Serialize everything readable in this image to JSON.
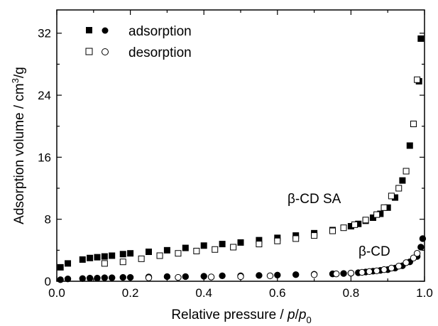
{
  "chart_data": {
    "type": "scatter",
    "xlabel_main": "Relative pressure / ",
    "xlabel_p": "p",
    "xlabel_slash": "/",
    "xlabel_p0": "p",
    "xlabel_sub": "0",
    "ylabel_main": "Adsorption volume / cm",
    "ylabel_sup": "3",
    "ylabel_tail": "/g",
    "xlim": [
      0.0,
      1.0
    ],
    "ylim": [
      0,
      35
    ],
    "x_ticks": [
      0.0,
      0.2,
      0.4,
      0.6,
      0.8,
      1.0
    ],
    "x_tick_labels": [
      "0.0",
      "0.2",
      "0.4",
      "0.6",
      "0.8",
      "1.0"
    ],
    "y_ticks": [
      0,
      8,
      16,
      24,
      32
    ],
    "y_tick_labels": [
      "0",
      "8",
      "16",
      "24",
      "32"
    ],
    "legend": {
      "position": "top-left",
      "entries": [
        {
          "label": "adsorption",
          "markers": [
            "square-filled",
            "circle-filled"
          ]
        },
        {
          "label": "desorption",
          "markers": [
            "square-open",
            "circle-open"
          ]
        }
      ]
    },
    "annotations": [
      {
        "text": "β-CD SA",
        "x": 0.71,
        "y": 10.0
      },
      {
        "text": "β-CD",
        "x": 0.93,
        "y": 3.6
      }
    ],
    "series": [
      {
        "name": "β-CD SA adsorption",
        "marker": "square-filled",
        "x": [
          0.01,
          0.03,
          0.07,
          0.09,
          0.11,
          0.13,
          0.15,
          0.18,
          0.2,
          0.25,
          0.3,
          0.35,
          0.4,
          0.45,
          0.5,
          0.55,
          0.6,
          0.65,
          0.7,
          0.75,
          0.8,
          0.82,
          0.84,
          0.86,
          0.88,
          0.9,
          0.92,
          0.94,
          0.96,
          0.97,
          0.985,
          0.99
        ],
        "y": [
          1.8,
          2.3,
          2.8,
          3.0,
          3.1,
          3.2,
          3.3,
          3.5,
          3.6,
          3.8,
          4.0,
          4.3,
          4.6,
          4.8,
          5.0,
          5.3,
          5.6,
          5.9,
          6.2,
          6.6,
          7.1,
          7.4,
          7.8,
          8.2,
          8.7,
          9.5,
          10.8,
          13.0,
          17.5,
          20.3,
          25.8,
          31.3
        ]
      },
      {
        "name": "β-CD SA desorption",
        "marker": "square-open",
        "x": [
          0.13,
          0.18,
          0.23,
          0.28,
          0.33,
          0.38,
          0.43,
          0.48,
          0.55,
          0.6,
          0.65,
          0.7,
          0.75,
          0.78,
          0.81,
          0.84,
          0.87,
          0.89,
          0.91,
          0.93,
          0.95,
          0.97,
          0.98
        ],
        "y": [
          2.3,
          2.5,
          2.9,
          3.3,
          3.6,
          3.9,
          4.1,
          4.4,
          4.8,
          5.2,
          5.5,
          5.9,
          6.5,
          6.9,
          7.3,
          7.9,
          8.6,
          9.5,
          11.0,
          12.0,
          14.2,
          20.3,
          26.0
        ]
      },
      {
        "name": "β-CD adsorption",
        "marker": "circle-filled",
        "x": [
          0.01,
          0.03,
          0.07,
          0.09,
          0.11,
          0.13,
          0.15,
          0.18,
          0.2,
          0.25,
          0.3,
          0.35,
          0.4,
          0.45,
          0.5,
          0.55,
          0.6,
          0.65,
          0.7,
          0.75,
          0.78,
          0.8,
          0.82,
          0.84,
          0.86,
          0.88,
          0.9,
          0.92,
          0.94,
          0.96,
          0.98,
          0.99,
          0.995
        ],
        "y": [
          0.2,
          0.3,
          0.35,
          0.4,
          0.4,
          0.45,
          0.45,
          0.5,
          0.5,
          0.55,
          0.6,
          0.6,
          0.65,
          0.7,
          0.7,
          0.75,
          0.8,
          0.85,
          0.9,
          0.95,
          1.0,
          1.05,
          1.1,
          1.2,
          1.3,
          1.4,
          1.5,
          1.7,
          2.0,
          2.5,
          3.2,
          4.4,
          5.5
        ]
      },
      {
        "name": "β-CD desorption",
        "marker": "circle-open",
        "x": [
          0.25,
          0.33,
          0.42,
          0.5,
          0.58,
          0.7,
          0.76,
          0.8,
          0.83,
          0.85,
          0.87,
          0.89,
          0.91,
          0.93,
          0.95,
          0.97,
          0.98
        ],
        "y": [
          0.45,
          0.5,
          0.55,
          0.6,
          0.7,
          0.85,
          0.95,
          1.05,
          1.15,
          1.25,
          1.35,
          1.5,
          1.7,
          1.95,
          2.4,
          3.0,
          3.6
        ]
      }
    ]
  }
}
